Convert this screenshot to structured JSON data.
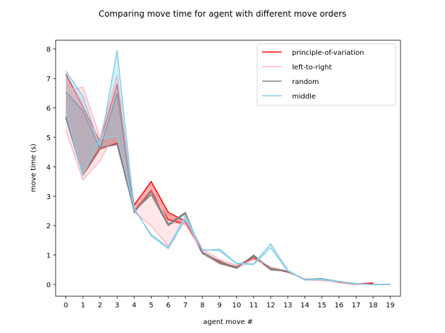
{
  "chart_data": {
    "type": "line",
    "title": "Comparing move time for agent with different move orders",
    "xlabel": "agent move #",
    "ylabel": "move time (s)",
    "x": [
      0,
      1,
      2,
      3,
      4,
      5,
      6,
      7,
      8,
      9,
      10,
      11,
      12,
      13,
      14,
      15,
      16,
      17,
      18,
      19
    ],
    "xlim": [
      -0.6,
      19.6
    ],
    "ylim": [
      -0.4,
      8.3
    ],
    "yticks": [
      0,
      1,
      2,
      3,
      4,
      5,
      6,
      7,
      8
    ],
    "grid": false,
    "legend_position": "top-right",
    "series": [
      {
        "name": "principle-of-variation",
        "color": "#ff0000",
        "runs": [
          [
            7.15,
            6.05,
            4.85,
            6.8,
            2.7,
            3.5,
            2.45,
            2.15,
            1.05,
            0.8,
            0.55,
            0.95,
            0.5,
            0.45,
            0.15,
            0.15,
            0.08,
            0.02,
            0.05,
            null
          ],
          [
            5.7,
            3.7,
            4.6,
            4.8,
            2.5,
            3.2,
            2.2,
            2.05,
            1.1,
            0.75,
            0.6,
            0.9,
            0.55,
            0.42,
            0.18,
            0.17,
            0.07,
            0.01,
            0.02,
            null
          ]
        ]
      },
      {
        "name": "left-to-right",
        "color": "#ffb6c1",
        "runs": [
          [
            6.6,
            6.7,
            5.0,
            7.1,
            2.6,
            3.35,
            2.1,
            2.05,
            1.1,
            0.7,
            0.55,
            0.85,
            0.6,
            0.45,
            0.15,
            0.13,
            0.08,
            0.02,
            0.0,
            0.0
          ],
          [
            5.25,
            3.55,
            4.2,
            5.3,
            2.45,
            2.0,
            1.3,
            2.3,
            1.2,
            0.85,
            0.65,
            0.95,
            0.55,
            0.45,
            0.18,
            0.15,
            0.1,
            0.03,
            0.0,
            0.0
          ]
        ]
      },
      {
        "name": "random",
        "color": "#808080",
        "runs": [
          [
            6.55,
            5.9,
            4.6,
            6.5,
            2.45,
            3.15,
            2.05,
            2.45,
            1.05,
            0.72,
            0.55,
            1.0,
            0.5,
            0.45,
            0.17,
            0.2,
            0.1,
            0.02,
            0.0,
            0.0
          ],
          [
            5.65,
            3.75,
            4.65,
            4.75,
            2.5,
            3.05,
            2.0,
            2.4,
            1.1,
            0.78,
            0.58,
            0.95,
            0.55,
            0.45,
            0.16,
            0.18,
            0.09,
            0.02,
            0.0,
            0.0
          ]
        ]
      },
      {
        "name": "middle",
        "color": "#87ceeb",
        "runs": [
          [
            7.25,
            6.4,
            4.7,
            7.95,
            2.55,
            1.7,
            1.25,
            2.35,
            1.15,
            1.2,
            0.72,
            0.7,
            1.38,
            0.48,
            0.16,
            0.18,
            0.1,
            0.02,
            0.0,
            0.0
          ],
          [
            5.85,
            3.7,
            4.95,
            5.05,
            2.6,
            1.65,
            1.22,
            2.2,
            1.18,
            1.15,
            0.7,
            0.68,
            1.25,
            0.45,
            0.15,
            0.16,
            0.1,
            0.03,
            0.0,
            0.0
          ]
        ]
      }
    ]
  }
}
